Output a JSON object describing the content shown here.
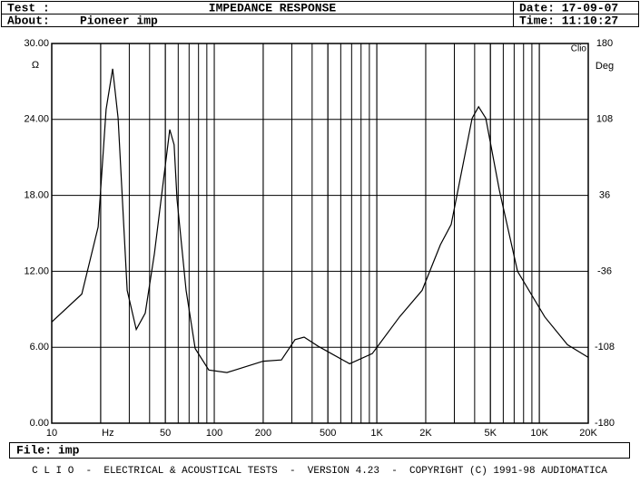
{
  "header": {
    "test_label": "Test :",
    "title": "IMPEDANCE RESPONSE",
    "date": "Date: 17-09-07",
    "about_label": "About:",
    "about": "Pioneer imp",
    "time": "Time: 11:10:27"
  },
  "chart_data": {
    "type": "line",
    "y_label": "Ω",
    "y2_label": "Deg",
    "corner_label": "Clio",
    "log_x": true,
    "grid": true,
    "xlim": [
      10,
      20000
    ],
    "xticks": [
      10,
      {
        "value": 20,
        "label": "Hz"
      },
      50,
      100,
      200,
      500,
      {
        "value": 1000,
        "label": "1K"
      },
      {
        "value": 2000,
        "label": "2K"
      },
      {
        "value": 5000,
        "label": "5K"
      },
      {
        "value": 10000,
        "label": "10K"
      },
      {
        "value": 20000,
        "label": "20K"
      }
    ],
    "ylim": [
      0,
      30
    ],
    "yticks": [
      {
        "value": 0,
        "label": "0.00"
      },
      {
        "value": 6,
        "label": "6.00"
      },
      {
        "value": 12,
        "label": "12.00"
      },
      {
        "value": 18,
        "label": "18.00"
      },
      {
        "value": 24,
        "label": "24.00"
      },
      {
        "value": 30,
        "label": "30.00"
      }
    ],
    "y2lim": [
      -180,
      180
    ],
    "y2ticks": [
      -180,
      -108,
      -36,
      36,
      108,
      180
    ],
    "series": [
      {
        "color": "#000000",
        "x": [
          10,
          15.3,
          19.3,
          21.6,
          23.7,
          25.6,
          29.1,
          33.1,
          37.6,
          42.8,
          48.6,
          53.2,
          56.6,
          59,
          67.1,
          76.3,
          92.5,
          119.7,
          200,
          259,
          314,
          357,
          433,
          680,
          938,
          1380,
          1900,
          2460,
          2870,
          3400,
          3860,
          4230,
          4680,
          5680,
          7340,
          10800,
          14900,
          20000
        ],
        "values": [
          8.0,
          10.2,
          15.5,
          24.8,
          28.0,
          24.1,
          10.5,
          7.4,
          8.7,
          13.4,
          19.1,
          23.2,
          22.0,
          17.7,
          10.5,
          5.9,
          4.2,
          4.0,
          4.9,
          5.0,
          6.6,
          6.8,
          6.1,
          4.7,
          5.5,
          8.4,
          10.5,
          14.1,
          15.7,
          20.5,
          24.1,
          25.0,
          24.1,
          18.4,
          12.0,
          8.4,
          6.2,
          5.2
        ]
      }
    ]
  },
  "footer": {
    "file_label": "File:",
    "file": "imp",
    "banner": "C L I O  -  ELECTRICAL & ACOUSTICAL TESTS  -  VERSION 4.23  -  COPYRIGHT (C) 1991-98 AUDIOMATICA"
  }
}
